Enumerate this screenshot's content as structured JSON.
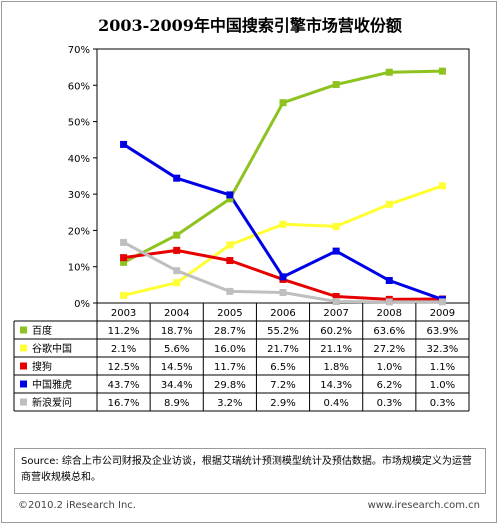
{
  "title": "2003-2009年中国搜索引擎市场营收份额",
  "chart_data": {
    "type": "line",
    "categories": [
      "2003",
      "2004",
      "2005",
      "2006",
      "2007",
      "2008",
      "2009"
    ],
    "ylim": [
      0,
      70
    ],
    "yticks": [
      "0%",
      "10%",
      "20%",
      "30%",
      "40%",
      "50%",
      "60%",
      "70%"
    ],
    "grid": false,
    "legend": "table-below",
    "series": [
      {
        "name": "百度",
        "color": "#8dc21f",
        "values": [
          11.2,
          18.7,
          28.7,
          55.2,
          60.2,
          63.6,
          63.9
        ],
        "labels": [
          "11.2%",
          "18.7%",
          "28.7%",
          "55.2%",
          "60.2%",
          "63.6%",
          "63.9%"
        ]
      },
      {
        "name": "谷歌中国",
        "color": "#ffff33",
        "values": [
          2.1,
          5.6,
          16.0,
          21.7,
          21.1,
          27.2,
          32.3
        ],
        "labels": [
          "2.1%",
          "5.6%",
          "16.0%",
          "21.7%",
          "21.1%",
          "27.2%",
          "32.3%"
        ]
      },
      {
        "name": "搜狗",
        "color": "#e60000",
        "values": [
          12.5,
          14.5,
          11.7,
          6.5,
          1.8,
          1.0,
          1.1
        ],
        "labels": [
          "12.5%",
          "14.5%",
          "11.7%",
          "6.5%",
          "1.8%",
          "1.0%",
          "1.1%"
        ]
      },
      {
        "name": "中国雅虎",
        "color": "#0000e6",
        "values": [
          43.7,
          34.4,
          29.8,
          7.2,
          14.3,
          6.2,
          1.0
        ],
        "labels": [
          "43.7%",
          "34.4%",
          "29.8%",
          "7.2%",
          "14.3%",
          "6.2%",
          "1.0%"
        ]
      },
      {
        "name": "新浪爱问",
        "color": "#bfbfbf",
        "values": [
          16.7,
          8.9,
          3.2,
          2.9,
          0.4,
          0.3,
          0.3
        ],
        "labels": [
          "16.7%",
          "8.9%",
          "3.2%",
          "2.9%",
          "0.4%",
          "0.3%",
          "0.3%"
        ]
      }
    ]
  },
  "source": "Source: 综合上市公司财报及企业访谈，根据艾瑞统计预测模型统计及预估数据。市场规模定义为运营商营收规模总和。",
  "copyright": "©2010.2 iResearch Inc.",
  "website": "www.iresearch.com.cn"
}
